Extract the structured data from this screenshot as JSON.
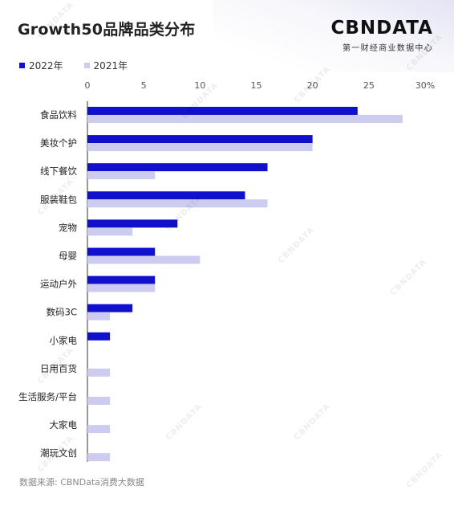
{
  "title": "Growth50品牌品类分布",
  "logo": {
    "main": "CBNDATA",
    "sub": "第一财经商业数据中心"
  },
  "source": "数据来源: CBNData消费大数据",
  "watermark_text": "CBNDATA",
  "colors": {
    "series_2022": "#1111cc",
    "series_2021": "#ccccf0",
    "axis": "#333333"
  },
  "chart_data": {
    "type": "bar",
    "orientation": "horizontal",
    "categories": [
      "食品饮料",
      "美妆个护",
      "线下餐饮",
      "服装鞋包",
      "宠物",
      "母婴",
      "运动户外",
      "数码3C",
      "小家电",
      "日用百货",
      "生活服务/平台",
      "大家电",
      "潮玩文创"
    ],
    "series": [
      {
        "name": "2022年",
        "values": [
          24,
          20,
          16,
          14,
          8,
          6,
          6,
          4,
          2,
          0,
          0,
          0,
          0
        ]
      },
      {
        "name": "2021年",
        "values": [
          28,
          20,
          6,
          16,
          4,
          10,
          6,
          2,
          0,
          2,
          2,
          2,
          2
        ]
      }
    ],
    "xticks": [
      "0",
      "5",
      "10",
      "15",
      "20",
      "25",
      "30%"
    ],
    "xlim": [
      0,
      30
    ],
    "legend_position": "top-left",
    "grid": false
  }
}
